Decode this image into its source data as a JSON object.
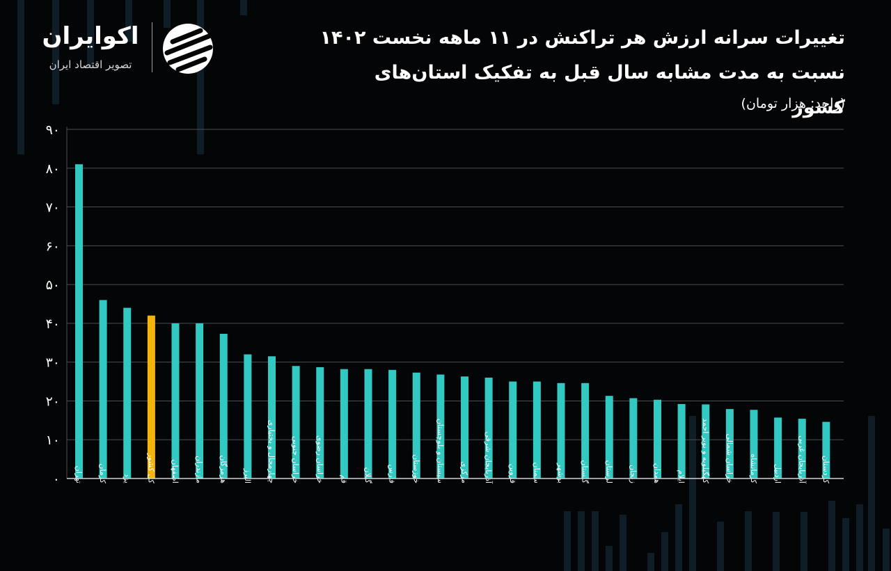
{
  "header": {
    "title_line1": "تغییرات سرانه ارزش هر تراکنش در ۱۱ ماهه نخست ۱۴۰۲",
    "title_line2": "نسبت به مدت مشابه سال قبل به تفکیک استان‌های کشور",
    "unit": "(واحد: هزار تومان)"
  },
  "logo": {
    "name": "اکوایران",
    "tagline": "تصویر اقتصاد ایران"
  },
  "colors": {
    "background": "#040506",
    "bar": "#33c9c3",
    "highlight_bar": "#f3b40c",
    "grid": "#4a4f52"
  },
  "chart_data": {
    "type": "bar",
    "ylim": [
      0,
      90
    ],
    "yticks": [
      "۰",
      "۱۰",
      "۲۰",
      "۳۰",
      "۴۰",
      "۵۰",
      "۶۰",
      "۷۰",
      "۸۰",
      "۹۰"
    ],
    "ytick_values": [
      0,
      10,
      20,
      30,
      40,
      50,
      60,
      70,
      80,
      90
    ],
    "grid": true,
    "highlight_category": "کل کشور",
    "categories": [
      "تهران",
      "کرمان",
      "یزد",
      "کل کشور",
      "اصفهان",
      "مازندران",
      "هرمزگان",
      "البرز",
      "چهارمحال و بختیاری",
      "خراسان جنوبی",
      "خراسان رضوی",
      "قم",
      "گیلان",
      "فارس",
      "خوزستان",
      "سیستان و بلوچستان",
      "مرکزی",
      "آذربایجان شرقی",
      "قزوین",
      "سمنان",
      "بوشهر",
      "گلستان",
      "لرستان",
      "زنجان",
      "همدان",
      "ایلام",
      "کهگیلویه و بویر احمد",
      "خراسان شمالی",
      "کرمانشاه",
      "اردبیل",
      "آذربایجان غربی",
      "کردستان"
    ],
    "values": [
      81,
      46,
      44,
      42,
      40,
      40,
      37.3,
      32,
      31.5,
      29,
      28.7,
      28.2,
      28.2,
      28,
      27.3,
      26.8,
      26.3,
      26,
      25,
      25,
      24.6,
      24.6,
      21.3,
      20.7,
      20.3,
      19.2,
      19.1,
      17.9,
      17.7,
      15.7,
      15.4,
      14.6
    ]
  }
}
